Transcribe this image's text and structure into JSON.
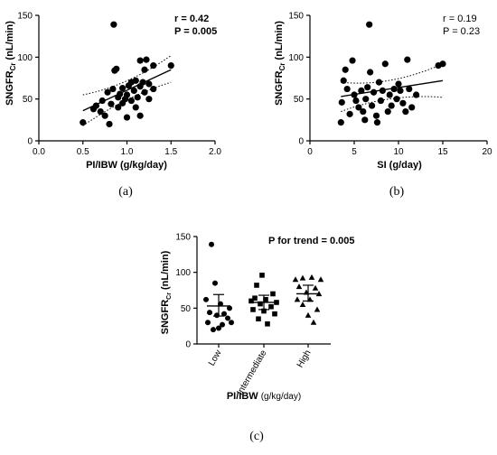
{
  "chart_data": [
    {
      "type": "scatter",
      "panel": "(a)",
      "xlabel": "PI/IBW (g/kg/day)",
      "ylabel": "SNGFR",
      "ylabel_sub": "Cr",
      "ylabel_unit": "(nL/min)",
      "xlim": [
        0.0,
        2.0
      ],
      "ylim": [
        0,
        150
      ],
      "xticks": [
        "0.0",
        "0.5",
        "1.0",
        "1.5",
        "2.0"
      ],
      "yticks": [
        "0",
        "50",
        "100",
        "150"
      ],
      "stats": [
        "r = 0.42",
        "P = 0.005"
      ],
      "stats_bold": true,
      "regression": {
        "x": [
          0.5,
          1.5
        ],
        "y": [
          36,
          85
        ]
      },
      "ci_upper": {
        "x": [
          0.5,
          1.0,
          1.5
        ],
        "y": [
          55,
          65,
          102
        ]
      },
      "ci_lower": {
        "x": [
          0.5,
          1.0,
          1.5
        ],
        "y": [
          18,
          54,
          70
        ]
      },
      "points": [
        [
          0.5,
          22
        ],
        [
          0.62,
          38
        ],
        [
          0.65,
          42
        ],
        [
          0.7,
          35
        ],
        [
          0.72,
          48
        ],
        [
          0.75,
          30
        ],
        [
          0.78,
          58
        ],
        [
          0.8,
          20
        ],
        [
          0.82,
          44
        ],
        [
          0.84,
          62
        ],
        [
          0.85,
          139
        ],
        [
          0.86,
          84
        ],
        [
          0.88,
          86
        ],
        [
          0.9,
          52
        ],
        [
          0.9,
          40
        ],
        [
          0.92,
          56
        ],
        [
          0.95,
          45
        ],
        [
          0.95,
          63
        ],
        [
          0.98,
          50
        ],
        [
          1.0,
          28
        ],
        [
          1.0,
          55
        ],
        [
          1.02,
          66
        ],
        [
          1.05,
          70
        ],
        [
          1.05,
          48
        ],
        [
          1.08,
          60
        ],
        [
          1.1,
          72
        ],
        [
          1.1,
          40
        ],
        [
          1.12,
          52
        ],
        [
          1.15,
          30
        ],
        [
          1.15,
          65
        ],
        [
          1.15,
          96
        ],
        [
          1.18,
          70
        ],
        [
          1.2,
          58
        ],
        [
          1.2,
          85
        ],
        [
          1.22,
          97
        ],
        [
          1.25,
          68
        ],
        [
          1.25,
          50
        ],
        [
          1.3,
          62
        ],
        [
          1.3,
          90
        ],
        [
          1.5,
          90
        ]
      ]
    },
    {
      "type": "scatter",
      "panel": "(b)",
      "xlabel": "SI (g/day)",
      "ylabel": "SNGFR",
      "ylabel_sub": "Cr",
      "ylabel_unit": "(nL/min)",
      "xlim": [
        0,
        20
      ],
      "ylim": [
        0,
        150
      ],
      "xticks": [
        "0",
        "5",
        "10",
        "15",
        "20"
      ],
      "yticks": [
        "0",
        "50",
        "100",
        "150"
      ],
      "stats": [
        "r = 0.19",
        "P = 0.23"
      ],
      "stats_bold": false,
      "regression": {
        "x": [
          3.5,
          15
        ],
        "y": [
          53,
          72
        ]
      },
      "ci_upper": {
        "x": [
          3.5,
          9,
          15
        ],
        "y": [
          70,
          64,
          92
        ]
      },
      "ci_lower": {
        "x": [
          3.5,
          9,
          15
        ],
        "y": [
          35,
          57,
          52
        ]
      },
      "points": [
        [
          3.5,
          22
        ],
        [
          3.6,
          46
        ],
        [
          3.8,
          72
        ],
        [
          4.0,
          85
        ],
        [
          4.2,
          62
        ],
        [
          4.5,
          32
        ],
        [
          4.8,
          96
        ],
        [
          5.0,
          55
        ],
        [
          5.2,
          48
        ],
        [
          5.5,
          40
        ],
        [
          5.8,
          60
        ],
        [
          6.0,
          35
        ],
        [
          6.2,
          25
        ],
        [
          6.3,
          50
        ],
        [
          6.5,
          64
        ],
        [
          6.7,
          139
        ],
        [
          6.8,
          82
        ],
        [
          7.0,
          42
        ],
        [
          7.2,
          58
        ],
        [
          7.5,
          30
        ],
        [
          7.6,
          22
        ],
        [
          7.8,
          70
        ],
        [
          8.0,
          48
        ],
        [
          8.2,
          60
        ],
        [
          8.5,
          92
        ],
        [
          8.8,
          35
        ],
        [
          9.0,
          55
        ],
        [
          9.2,
          42
        ],
        [
          9.5,
          62
        ],
        [
          9.8,
          50
        ],
        [
          10.0,
          68
        ],
        [
          10.2,
          60
        ],
        [
          10.5,
          45
        ],
        [
          10.8,
          35
        ],
        [
          11.0,
          97
        ],
        [
          11.2,
          62
        ],
        [
          11.5,
          40
        ],
        [
          12.0,
          55
        ],
        [
          14.5,
          90
        ],
        [
          15.0,
          92
        ]
      ]
    },
    {
      "type": "dot",
      "panel": "(c)",
      "xlabel": "PI/IBW",
      "xlabel_unit": "(g/kg/day)",
      "ylabel": "SNGFR",
      "ylabel_sub": "Cr",
      "ylabel_unit": "(nL/min)",
      "ylim": [
        0,
        150
      ],
      "yticks": [
        "0",
        "50",
        "100",
        "150"
      ],
      "categories": [
        "Low",
        "Intermediate",
        "High"
      ],
      "stats": [
        "P for trend = 0.005"
      ],
      "groups": [
        {
          "marker": "circle",
          "mean": 53,
          "ci": [
            39,
            69
          ],
          "points": [
            [
              -8,
              139
            ],
            [
              -4,
              85
            ],
            [
              -14,
              62
            ],
            [
              2,
              56
            ],
            [
              12,
              50
            ],
            [
              -10,
              44
            ],
            [
              6,
              42
            ],
            [
              -2,
              40
            ],
            [
              10,
              36
            ],
            [
              -12,
              30
            ],
            [
              4,
              27
            ],
            [
              0,
              22
            ],
            [
              -6,
              20
            ],
            [
              14,
              30
            ]
          ]
        },
        {
          "marker": "square",
          "mean": 58,
          "ci": [
            48,
            68
          ],
          "points": [
            [
              -2,
              96
            ],
            [
              -8,
              82
            ],
            [
              10,
              70
            ],
            [
              -14,
              60
            ],
            [
              2,
              62
            ],
            [
              14,
              58
            ],
            [
              -4,
              56
            ],
            [
              8,
              52
            ],
            [
              -12,
              48
            ],
            [
              0,
              46
            ],
            [
              12,
              42
            ],
            [
              -6,
              35
            ],
            [
              4,
              28
            ],
            [
              -10,
              64
            ]
          ]
        },
        {
          "marker": "triangle",
          "mean": 70,
          "ci": [
            60,
            82
          ],
          "points": [
            [
              -14,
              90
            ],
            [
              -6,
              92
            ],
            [
              4,
              93
            ],
            [
              14,
              90
            ],
            [
              -10,
              80
            ],
            [
              8,
              78
            ],
            [
              -2,
              72
            ],
            [
              12,
              70
            ],
            [
              -12,
              62
            ],
            [
              2,
              62
            ],
            [
              -6,
              55
            ],
            [
              10,
              48
            ],
            [
              0,
              40
            ],
            [
              6,
              30
            ]
          ]
        }
      ]
    }
  ],
  "captions": [
    "(a)",
    "(b)",
    "(c)"
  ]
}
